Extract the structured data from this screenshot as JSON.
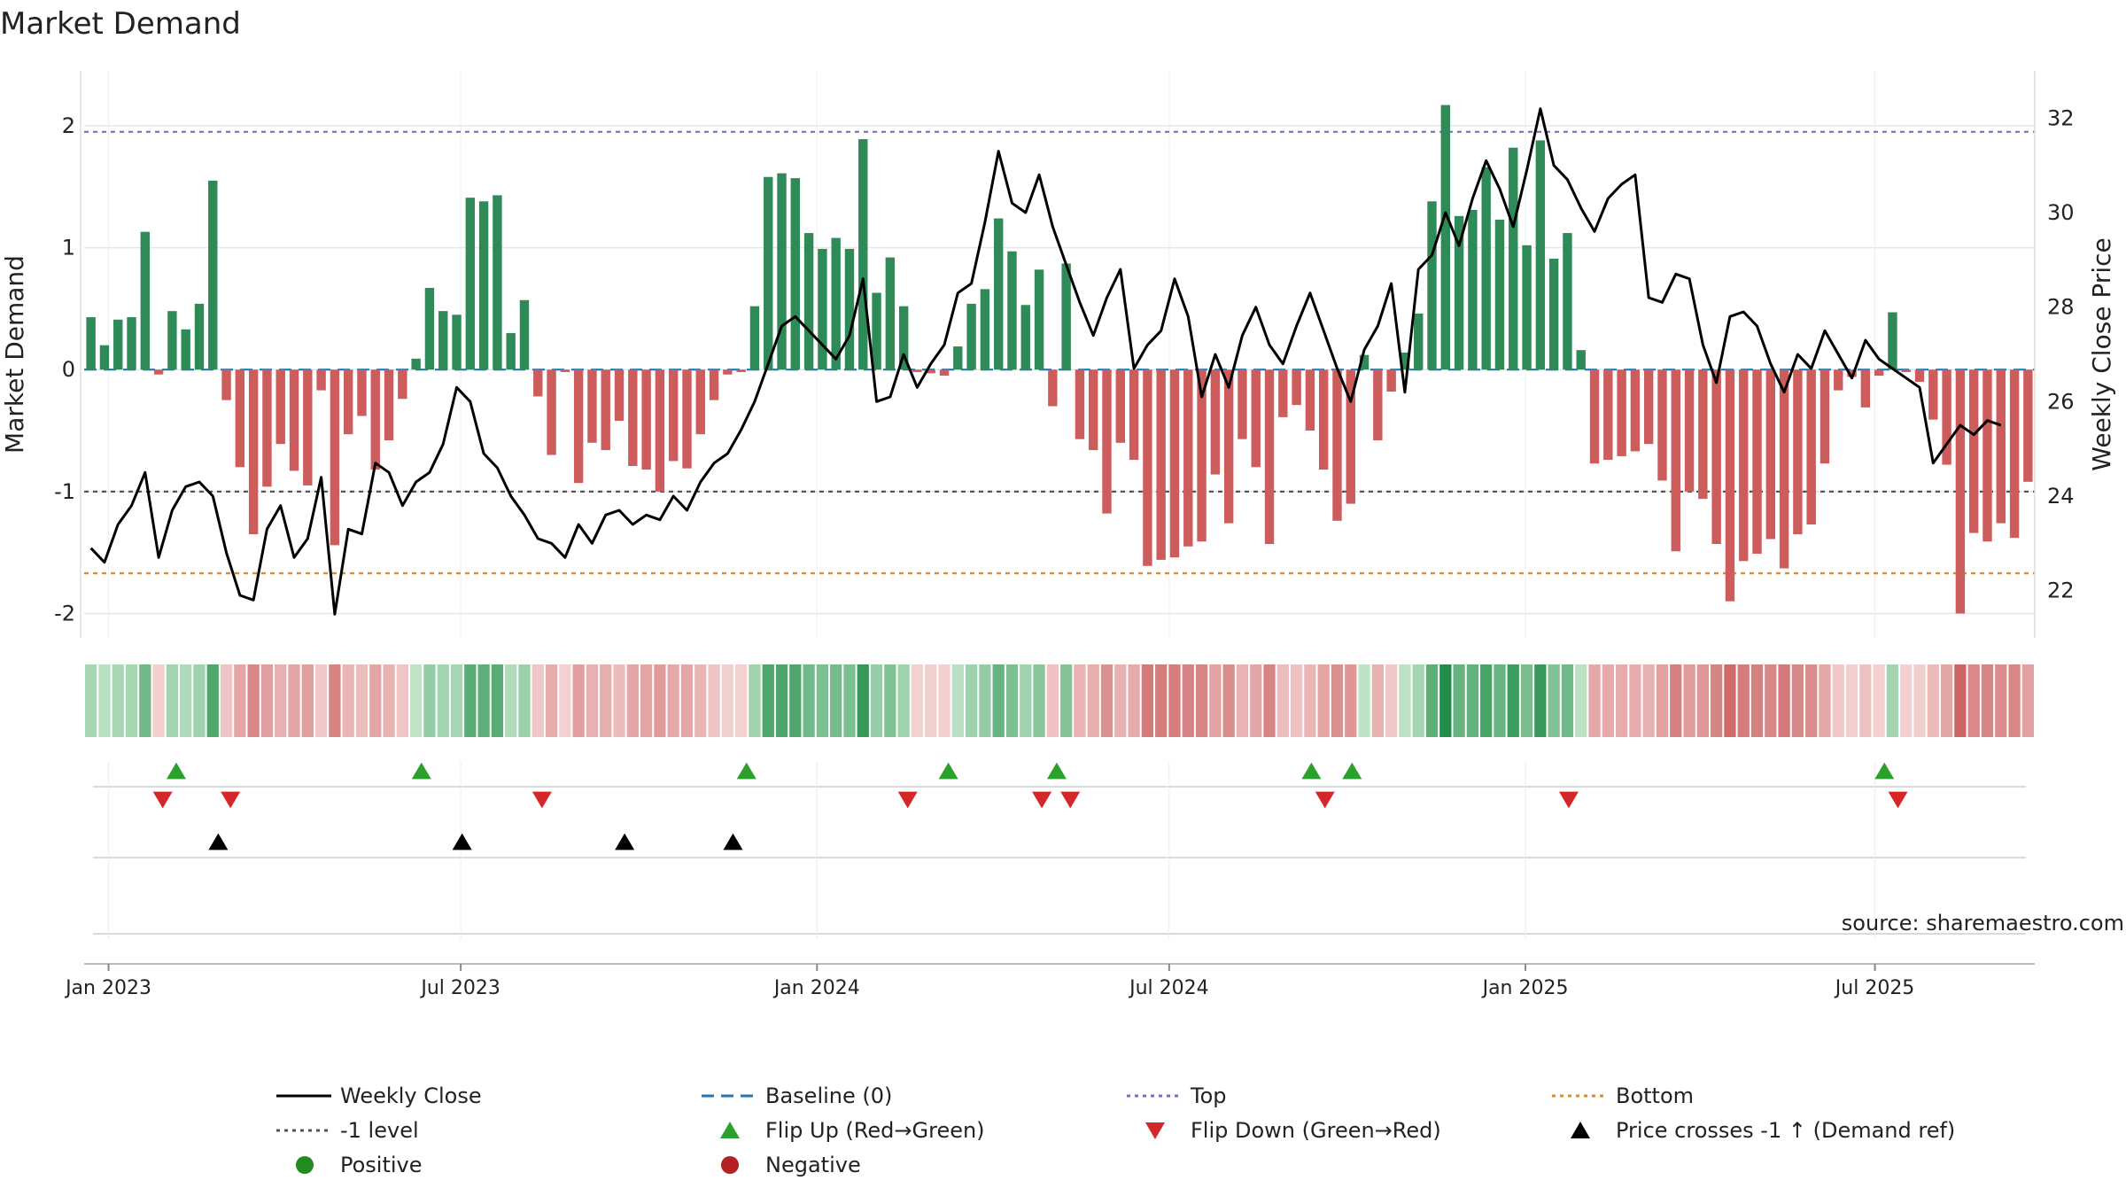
{
  "chart_data": {
    "type": "bar",
    "title": "Market Demand",
    "ylabel": "Market Demand",
    "y2label": "Weekly Close Price",
    "ylim": [
      -2.2,
      2.45
    ],
    "y2lim": [
      21.0,
      33.0
    ],
    "yticks": [
      -2,
      -1,
      0,
      1,
      2
    ],
    "y2ticks": [
      22,
      24,
      26,
      28,
      30,
      32
    ],
    "x_start_week": 0,
    "x_ticks": [
      {
        "label": "Jan 2023",
        "week": 1.3
      },
      {
        "label": "Jul 2023",
        "week": 27.3
      },
      {
        "label": "Jan 2024",
        "week": 53.6
      },
      {
        "label": "Jul 2024",
        "week": 79.6
      },
      {
        "label": "Jan 2025",
        "week": 105.9
      },
      {
        "label": "Jul 2025",
        "week": 131.7
      }
    ],
    "reference_lines": {
      "top": 1.95,
      "baseline": 0,
      "minus_one": -1,
      "bottom": -1.67
    },
    "demand": [
      0.43,
      0.2,
      0.41,
      0.43,
      1.13,
      -0.04,
      0.48,
      0.33,
      0.54,
      1.55,
      -0.25,
      -0.8,
      -1.35,
      -0.96,
      -0.61,
      -0.83,
      -0.95,
      -0.17,
      -1.44,
      -0.53,
      -0.38,
      -0.82,
      -0.58,
      -0.24,
      0.09,
      0.67,
      0.48,
      0.45,
      1.41,
      1.38,
      1.43,
      0.3,
      0.57,
      -0.22,
      -0.7,
      -0.02,
      -0.93,
      -0.6,
      -0.66,
      -0.42,
      -0.79,
      -0.82,
      -1.0,
      -0.75,
      -0.81,
      -0.53,
      -0.25,
      -0.04,
      -0.02,
      0.52,
      1.58,
      1.61,
      1.57,
      1.12,
      0.99,
      1.08,
      0.99,
      1.89,
      0.63,
      0.92,
      0.52,
      -0.02,
      -0.03,
      -0.05,
      0.19,
      0.54,
      0.66,
      1.24,
      0.97,
      0.53,
      0.82,
      -0.3,
      0.87,
      -0.57,
      -0.66,
      -1.18,
      -0.6,
      -0.74,
      -1.61,
      -1.56,
      -1.54,
      -1.45,
      -1.41,
      -0.86,
      -1.26,
      -0.57,
      -0.8,
      -1.43,
      -0.39,
      -0.29,
      -0.5,
      -0.82,
      -1.24,
      -1.1,
      0.12,
      -0.58,
      -0.18,
      0.14,
      0.46,
      1.38,
      2.17,
      1.26,
      1.31,
      1.66,
      1.23,
      1.82,
      1.02,
      1.88,
      0.91,
      1.12,
      0.16,
      -0.77,
      -0.74,
      -0.71,
      -0.67,
      -0.61,
      -0.91,
      -1.49,
      -1.0,
      -1.06,
      -1.43,
      -1.9,
      -1.57,
      -1.51,
      -1.39,
      -1.63,
      -1.35,
      -1.27,
      -0.77,
      -0.17,
      -0.06,
      -0.31,
      -0.05,
      0.47,
      -0.02,
      -0.1,
      -0.41,
      -0.78,
      -2.0,
      -1.34,
      -1.41,
      -1.26,
      -1.38,
      -0.92
    ],
    "weekly_close": [
      22.9,
      22.6,
      23.4,
      23.8,
      24.5,
      22.7,
      23.7,
      24.2,
      24.3,
      24.0,
      22.8,
      21.9,
      21.8,
      23.3,
      23.8,
      22.7,
      23.1,
      24.4,
      21.5,
      23.3,
      23.2,
      24.7,
      24.5,
      23.8,
      24.3,
      24.5,
      25.1,
      26.3,
      26.0,
      24.9,
      24.6,
      24.0,
      23.6,
      23.1,
      23.0,
      22.7,
      23.4,
      23.0,
      23.6,
      23.7,
      23.4,
      23.6,
      23.5,
      24.0,
      23.7,
      24.3,
      24.7,
      24.9,
      25.4,
      26.0,
      26.8,
      27.6,
      27.8,
      27.5,
      27.2,
      26.9,
      27.4,
      28.6,
      26.0,
      26.1,
      27.0,
      26.3,
      26.8,
      27.2,
      28.3,
      28.5,
      29.8,
      31.3,
      30.2,
      30.0,
      30.8,
      29.7,
      28.9,
      28.1,
      27.4,
      28.2,
      28.8,
      26.7,
      27.2,
      27.5,
      28.6,
      27.8,
      26.1,
      27.0,
      26.3,
      27.4,
      28.0,
      27.2,
      26.8,
      27.6,
      28.3,
      27.5,
      26.7,
      26.0,
      27.1,
      27.6,
      28.5,
      26.2,
      28.8,
      29.1,
      30.0,
      29.3,
      30.3,
      31.1,
      30.5,
      29.7,
      30.9,
      32.2,
      31.0,
      30.7,
      30.1,
      29.6,
      30.3,
      30.6,
      30.8,
      28.2,
      28.1,
      28.7,
      28.6,
      27.2,
      26.4,
      27.8,
      27.9,
      27.6,
      26.8,
      26.2,
      27.0,
      26.7,
      27.5,
      27.0,
      26.5,
      27.3,
      26.9,
      26.7,
      26.5,
      26.3,
      24.7,
      25.1,
      25.5,
      25.3,
      25.6,
      25.5
    ]
  },
  "heat_strip": {
    "label": "",
    "values_ref": "chart_data.demand"
  },
  "signal_rows": {
    "flip_up_weeks": [
      6.3,
      24.4,
      48.4,
      63.3,
      71.3,
      90.1,
      93.1,
      132.4
    ],
    "flip_down_weeks": [
      5.3,
      10.3,
      33.3,
      60.3,
      70.2,
      72.3,
      91.1,
      109.1,
      133.4
    ],
    "price_cross_weeks": [
      9.4,
      27.4,
      39.4,
      47.4
    ]
  },
  "source_text": "source: sharemaestro.com",
  "legend": [
    {
      "key": "weekly_close",
      "label": "Weekly Close",
      "kind": "line",
      "color": "#000000"
    },
    {
      "key": "baseline",
      "label": "Baseline (0)",
      "kind": "dash",
      "color": "#1f77b4"
    },
    {
      "key": "top",
      "label": "Top",
      "kind": "dot",
      "color": "#7070c8"
    },
    {
      "key": "bottom",
      "label": "Bottom",
      "kind": "dot",
      "color": "#e08a28"
    },
    {
      "key": "minus_one",
      "label": "-1 level",
      "kind": "dot",
      "color": "#555555"
    },
    {
      "key": "flip_up",
      "label": "Flip Up (Red→Green)",
      "kind": "tri-up",
      "color": "#2ca02c"
    },
    {
      "key": "flip_down",
      "label": "Flip Down (Green→Red)",
      "kind": "tri-down",
      "color": "#d62728"
    },
    {
      "key": "price_cross",
      "label": "Price crosses -1 ↑ (Demand ref)",
      "kind": "tri-up",
      "color": "#000000"
    },
    {
      "key": "positive",
      "label": "Positive",
      "kind": "circle",
      "color": "#228b22"
    },
    {
      "key": "negative",
      "label": "Negative",
      "kind": "circle",
      "color": "#b22222"
    }
  ],
  "colors": {
    "positive_bar": "#2e8b57",
    "negative_bar": "#cd5c5c",
    "line": "#000000",
    "grid": "#e6e6e6",
    "signal_up": "#2ca02c",
    "signal_down": "#d62728",
    "signal_cross": "#000000"
  }
}
